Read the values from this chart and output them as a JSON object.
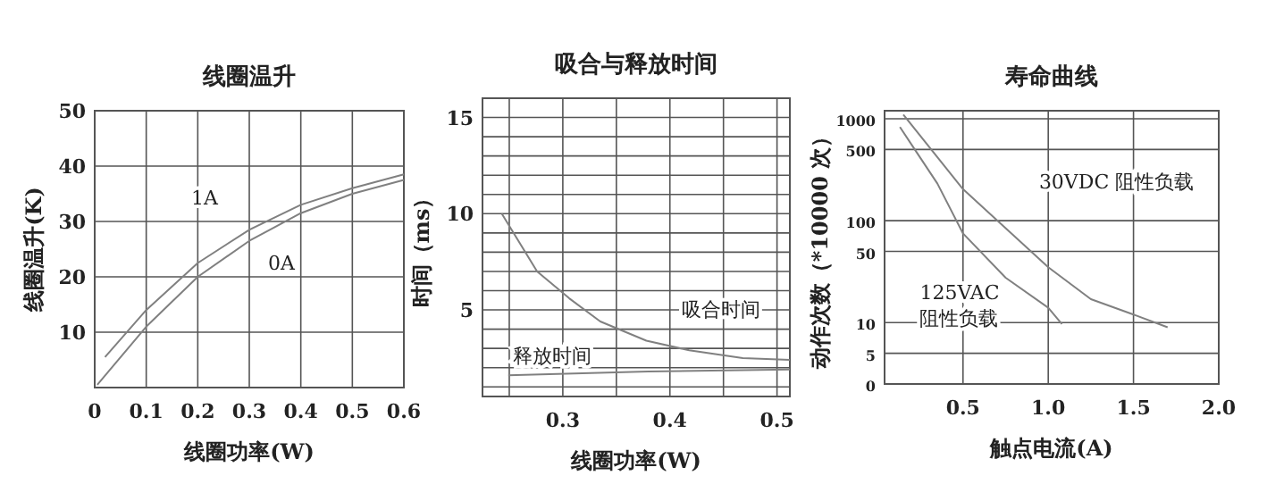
{
  "chart_data": [
    {
      "type": "line",
      "title": "线圈温升",
      "xlabel": "线圈功率(W)",
      "ylabel": "线圈温升(K)",
      "xlim": [
        0,
        0.6
      ],
      "ylim": [
        0,
        50
      ],
      "xticks": [
        0,
        0.1,
        0.2,
        0.3,
        0.4,
        0.5,
        0.6
      ],
      "yticks": [
        10,
        20,
        30,
        40,
        50
      ],
      "grid": true,
      "series": [
        {
          "name": "1A",
          "color": "#808080",
          "x": [
            0.02,
            0.1,
            0.2,
            0.3,
            0.4,
            0.5,
            0.6
          ],
          "values": [
            5.5,
            14,
            22.5,
            28.5,
            33,
            36,
            38.5
          ]
        },
        {
          "name": "0A",
          "color": "#808080",
          "x": [
            0.005,
            0.1,
            0.2,
            0.3,
            0.4,
            0.5,
            0.6
          ],
          "values": [
            0.5,
            11,
            20,
            26.5,
            31.5,
            35,
            37.5
          ]
        }
      ]
    },
    {
      "type": "line",
      "title": "吸合与释放时间",
      "xlabel": "线圈功率(W)",
      "ylabel": "时间（ms）",
      "xlim": [
        0.225,
        0.512
      ],
      "ylim": [
        0.5,
        16
      ],
      "xticks": [
        {
          "value": 0.25,
          "label": null
        },
        0.3,
        {
          "value": 0.35,
          "label": null
        },
        0.4,
        {
          "value": 0.45,
          "label": null
        },
        0.5
      ],
      "yticks": [
        {
          "value": 1,
          "label": null
        },
        {
          "value": 2,
          "label": null
        },
        {
          "value": 3,
          "label": null
        },
        {
          "value": 4,
          "label": null
        },
        5,
        {
          "value": 6,
          "label": null
        },
        {
          "value": 7,
          "label": null
        },
        {
          "value": 8,
          "label": null
        },
        {
          "value": 9,
          "label": null
        },
        10,
        {
          "value": 11,
          "label": null
        },
        {
          "value": 12,
          "label": null
        },
        {
          "value": 13,
          "label": null
        },
        {
          "value": 14,
          "label": null
        },
        15,
        {
          "value": 16,
          "label": null
        }
      ],
      "grid": true,
      "series": [
        {
          "name": "吸合时间",
          "color": "#808080",
          "x": [
            0.243,
            0.276,
            0.306,
            0.335,
            0.378,
            0.418,
            0.468,
            0.512
          ],
          "values": [
            10,
            7,
            5.6,
            4.4,
            3.4,
            2.9,
            2.5,
            2.4
          ]
        },
        {
          "name": "释放时间",
          "color": "#808080",
          "x": [
            0.249,
            0.38,
            0.512
          ],
          "values": [
            1.6,
            1.8,
            1.9
          ]
        }
      ]
    },
    {
      "type": "line",
      "title": "寿命曲线",
      "xlabel": "触点电流(A)",
      "ylabel": "动作次数（*10000 次）",
      "log": "y",
      "xlim": [
        0.04,
        2.0
      ],
      "ylim": [
        0,
        1200
      ],
      "xticks": [
        0.5,
        {
          "value": 1,
          "label": "1.0"
        },
        1.5,
        {
          "value": 2,
          "label": "2.0"
        }
      ],
      "yticks": [
        {
          "value": 0,
          "label": "0"
        },
        5,
        10,
        50,
        100,
        500,
        1000
      ],
      "grid": true,
      "series": [
        {
          "name": "30VDC 阻性负载",
          "color": "#808080",
          "x": [
            0.15,
            0.5,
            1.0,
            1.25,
            1.5,
            1.7
          ],
          "values": [
            1100,
            204,
            35,
            17,
            12,
            9
          ]
        },
        {
          "name": "125VAC\n阻性负载",
          "color": "#808080",
          "x": [
            0.13,
            0.35,
            0.5,
            0.75,
            1.0,
            1.08
          ],
          "values": [
            830,
            231,
            75,
            27.6,
            14,
            9.7
          ]
        }
      ]
    }
  ]
}
